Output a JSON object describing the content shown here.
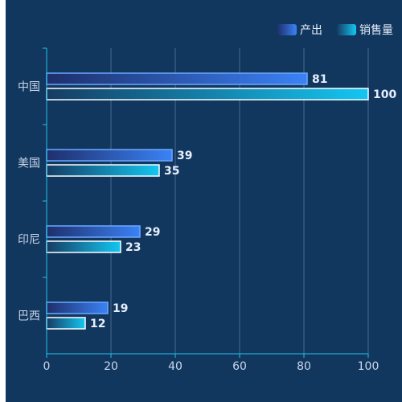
{
  "chart_data": {
    "type": "bar",
    "orientation": "horizontal",
    "categories": [
      "中国",
      "美国",
      "印尼",
      "巴西"
    ],
    "series": [
      {
        "name": "产出",
        "values": [
          81,
          39,
          29,
          19
        ],
        "color_start": "#1e2f6b",
        "color_end": "#3b82f6",
        "border": "#6aa8ff"
      },
      {
        "name": "销售量",
        "values": [
          100,
          35,
          23,
          12
        ],
        "color_start": "#153c63",
        "color_end": "#13c7f2",
        "border": "#ffffff"
      }
    ],
    "xlim": [
      0,
      100
    ],
    "x_ticks": [
      0,
      20,
      40,
      60,
      80,
      100
    ],
    "grid": true,
    "legend_position": "top-right",
    "title": "",
    "xlabel": "",
    "ylabel": ""
  },
  "colors": {
    "background": "#12375f",
    "axis": "#22c3ee",
    "grid": "#4a6a8f"
  }
}
